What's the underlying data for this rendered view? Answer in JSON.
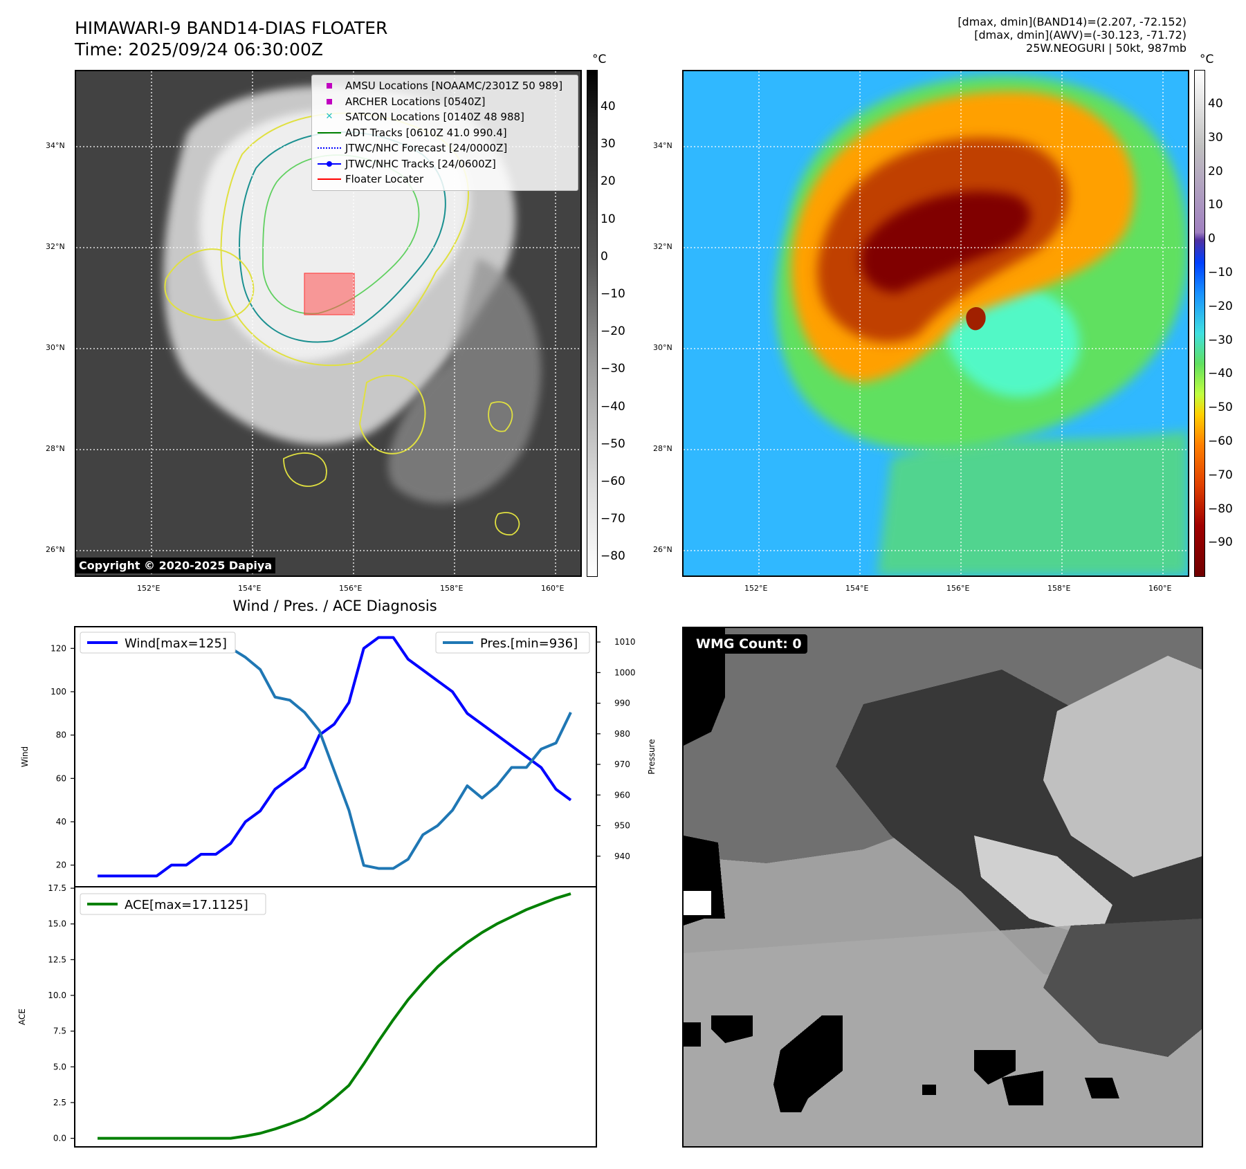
{
  "header": {
    "title_line1": "HIMAWARI-9 BAND14-DIAS FLOATER",
    "title_line2": "Time: 2025/09/24 06:30:00Z",
    "right_line1": "[dmax, dmin](BAND14)=(2.207, -72.152)",
    "right_line2": "[dmax, dmin](AWV)=(-30.123, -71.72)",
    "right_line3": "25W.NEOGURI | 50kt, 987mb"
  },
  "map": {
    "lat_labels": [
      "34°N",
      "32°N",
      "30°N",
      "28°N",
      "26°N"
    ],
    "lon_labels": [
      "152°E",
      "154°E",
      "156°E",
      "158°E",
      "160°E"
    ],
    "copyright": "Copyright © 2020-2025 Dapiya",
    "colorbar_unit": "°C",
    "colorbar_ticks_left": [
      "40",
      "30",
      "20",
      "10",
      "0",
      "−10",
      "−20",
      "−30",
      "−40",
      "−50",
      "−60",
      "−70",
      "−80"
    ],
    "colorbar_ticks_right": [
      "40",
      "30",
      "20",
      "10",
      "0",
      "−10",
      "−20",
      "−30",
      "−40",
      "−50",
      "−60",
      "−70",
      "−80",
      "−90"
    ],
    "legend": [
      {
        "label": "AMSU Locations [NOAAMC/2301Z 50 989]",
        "color": "#c000c0",
        "symbol": "square"
      },
      {
        "label": "ARCHER Locations [0540Z]",
        "color": "#c000c0",
        "symbol": "square"
      },
      {
        "label": "SATCON Locations [0140Z 48 988]",
        "color": "#20c0c0",
        "symbol": "x"
      },
      {
        "label": "ADT Tracks [0610Z 41.0 990.4]",
        "color": "#008000",
        "symbol": "line"
      },
      {
        "label": "JTWC/NHC Forecast [24/0000Z]",
        "color": "#0000ff",
        "symbol": "dotted"
      },
      {
        "label": "JTWC/NHC Tracks [24/0600Z]",
        "color": "#0000ff",
        "symbol": "line-dot"
      },
      {
        "label": "Floater Locater",
        "color": "#ff0000",
        "symbol": "line"
      }
    ],
    "wmg_label": "WMG Count: 0"
  },
  "chart_data": [
    {
      "type": "line",
      "title": "Wind / Pres. / ACE Diagnosis",
      "ylabel": "Wind",
      "ylabel_right": "Pressure",
      "ylim": [
        10,
        130
      ],
      "ylim_right": [
        930,
        1015
      ],
      "yticks": [
        20,
        40,
        60,
        80,
        100,
        120
      ],
      "yticks_right": [
        940,
        950,
        960,
        970,
        980,
        990,
        1000,
        1010
      ],
      "series": [
        {
          "name": "Wind[max=125]",
          "color": "#0000ff",
          "axis": "left",
          "values": [
            15,
            15,
            15,
            15,
            15,
            20,
            20,
            25,
            25,
            30,
            40,
            45,
            55,
            60,
            65,
            80,
            85,
            95,
            120,
            125,
            125,
            115,
            110,
            105,
            100,
            90,
            85,
            80,
            75,
            70,
            65,
            55,
            50
          ]
        },
        {
          "name": "Pres.[min=936]",
          "color": "#1f77b4",
          "axis": "right",
          "values": [
            1009,
            1009,
            1012,
            1012,
            1012,
            1010,
            1009,
            1009,
            1009,
            1008,
            1005,
            1001,
            992,
            991,
            987,
            981,
            968,
            955,
            937,
            936,
            936,
            939,
            947,
            950,
            955,
            963,
            959,
            963,
            969,
            969,
            975,
            977,
            987
          ]
        }
      ]
    },
    {
      "type": "line",
      "ylabel": "ACE",
      "ylim": [
        -0.6,
        17.6
      ],
      "yticks": [
        0.0,
        2.5,
        5.0,
        7.5,
        10.0,
        12.5,
        15.0,
        17.5
      ],
      "series": [
        {
          "name": "ACE[max=17.1125]",
          "color": "#008000",
          "values": [
            0,
            0,
            0,
            0,
            0,
            0,
            0,
            0,
            0,
            0,
            0.15,
            0.35,
            0.65,
            1.0,
            1.4,
            2.0,
            2.8,
            3.7,
            5.2,
            6.8,
            8.3,
            9.7,
            10.9,
            12.0,
            12.9,
            13.7,
            14.4,
            15.0,
            15.5,
            16.0,
            16.4,
            16.8,
            17.1125
          ]
        }
      ]
    }
  ],
  "colors": {
    "band14_bg": "#3a3a3a",
    "awv_bg": "#2aa0ff",
    "floater": "#ff0000"
  }
}
